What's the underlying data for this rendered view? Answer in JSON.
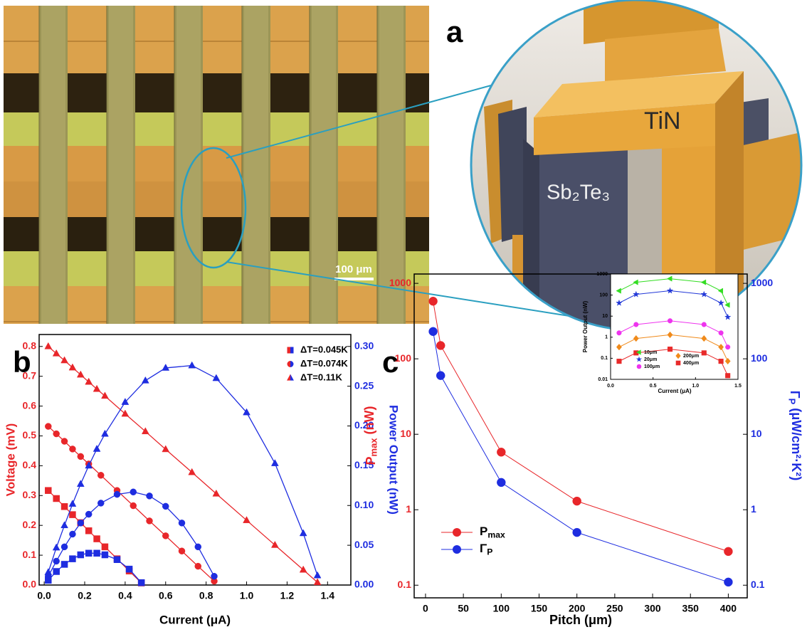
{
  "panel_labels": [
    "a",
    "b",
    "c"
  ],
  "micrograph": {
    "scale_bar": "100 μm"
  },
  "render": {
    "top_material": "TiN",
    "leg_material": "Sb₂Te₃"
  },
  "chart_data": [
    {
      "type": "line",
      "xlabel": "Current (μA)",
      "ylabel": "Voltage (mV)",
      "y2label": "Power Output (nW)",
      "ycolor": "#e8262a",
      "y2color": "#1e2de0",
      "xlim": [
        -0.025,
        1.515
      ],
      "ylim": [
        0,
        0.84
      ],
      "y2lim": [
        0,
        0.315
      ],
      "xticks": [
        {
          "value": 0,
          "label": "0.0"
        },
        0.2,
        0.4,
        0.6,
        0.8,
        {
          "value": 1,
          "label": "1.0"
        },
        1.2,
        1.4
      ],
      "yticks": [
        {
          "value": 0,
          "label": "0.0"
        },
        0.1,
        0.2,
        0.3,
        0.4,
        0.5,
        0.6,
        0.7,
        0.8
      ],
      "y2ticks": [
        {
          "value": 0,
          "label": "0.00"
        },
        0.05,
        {
          "value": 0.1,
          "label": "0.10"
        },
        0.15,
        {
          "value": 0.2,
          "label": "0.20"
        },
        0.25,
        {
          "value": 0.3,
          "label": "0.30"
        }
      ],
      "legend": "upper right",
      "series": [
        {
          "name": "ΔT=0.045K",
          "marker": "square",
          "x": [
            0.02,
            0.06,
            0.1,
            0.14,
            0.18,
            0.22,
            0.26,
            0.3,
            0.36,
            0.42,
            0.48
          ],
          "values": [
            0.317,
            0.29,
            0.263,
            0.236,
            0.209,
            0.182,
            0.155,
            0.128,
            0.088,
            0.047,
            0.007
          ],
          "y2values": [
            0.006,
            0.017,
            0.026,
            0.033,
            0.038,
            0.04,
            0.04,
            0.038,
            0.032,
            0.02,
            0.003
          ]
        },
        {
          "name": "ΔT=0.074K",
          "marker": "circle",
          "x": [
            0.02,
            0.06,
            0.1,
            0.14,
            0.18,
            0.22,
            0.28,
            0.36,
            0.44,
            0.52,
            0.6,
            0.68,
            0.76,
            0.84
          ],
          "values": [
            0.532,
            0.507,
            0.482,
            0.456,
            0.431,
            0.406,
            0.368,
            0.317,
            0.266,
            0.215,
            0.165,
            0.114,
            0.063,
            0.013
          ],
          "y2values": [
            0.011,
            0.03,
            0.048,
            0.064,
            0.078,
            0.089,
            0.103,
            0.114,
            0.117,
            0.112,
            0.099,
            0.078,
            0.048,
            0.011
          ]
        },
        {
          "name": "ΔT=0.11K",
          "marker": "triangle",
          "x": [
            0.02,
            0.06,
            0.1,
            0.14,
            0.18,
            0.22,
            0.26,
            0.3,
            0.4,
            0.5,
            0.6,
            0.73,
            0.85,
            1.0,
            1.14,
            1.28,
            1.35
          ],
          "values": [
            0.8,
            0.776,
            0.753,
            0.729,
            0.705,
            0.681,
            0.657,
            0.634,
            0.574,
            0.515,
            0.455,
            0.378,
            0.306,
            0.217,
            0.134,
            0.051,
            0.009
          ],
          "y2values": [
            0.016,
            0.047,
            0.075,
            0.102,
            0.127,
            0.15,
            0.171,
            0.19,
            0.23,
            0.257,
            0.273,
            0.276,
            0.26,
            0.217,
            0.153,
            0.065,
            0.012
          ]
        }
      ]
    },
    {
      "type": "line",
      "xlabel": "Pitch (μm)",
      "ylabel": [
        {
          "text": "P"
        },
        {
          "sub": "max"
        },
        {
          "text": " (nW)"
        }
      ],
      "y2label": [
        {
          "text": "Γ"
        },
        {
          "sub": "P"
        },
        {
          "text": " (μW/cm²·K²)"
        }
      ],
      "ycolor": "#e8262a",
      "y2color": "#1e2de0",
      "log_y": true,
      "log_y2": true,
      "x": [
        10,
        20,
        100,
        200,
        400
      ],
      "xlim": [
        -15,
        425
      ],
      "ylim": [
        0.068,
        1330
      ],
      "y2lim": [
        0.068,
        1330
      ],
      "xticks": [
        0,
        50,
        100,
        150,
        200,
        250,
        300,
        350,
        400
      ],
      "yticks": [
        0.1,
        1,
        10,
        100,
        1000
      ],
      "y2ticks": [
        0.1,
        1,
        10,
        100,
        1000
      ],
      "legend": "lower left",
      "series": [
        {
          "name": [
            {
              "text": "P"
            },
            {
              "sub": "max"
            }
          ],
          "color": "#e8262a",
          "marker": "circle",
          "values": [
            580,
            150,
            5.8,
            1.3,
            0.28
          ]
        },
        {
          "name": [
            {
              "text": "Γ"
            },
            {
              "sub": "P"
            }
          ],
          "color": "#1e2de0",
          "marker": "circle",
          "axis": "y2",
          "values": [
            230,
            60,
            2.3,
            0.5,
            0.11
          ]
        }
      ]
    },
    {
      "type": "line",
      "inset": true,
      "xlabel": "Current (μA)",
      "ylabel": "Power Output (nW)",
      "log_y": true,
      "x": [
        0.1,
        0.3,
        0.7,
        1.1,
        1.3,
        1.38
      ],
      "xlim": [
        0,
        1.5
      ],
      "ylim": [
        0.01,
        1000
      ],
      "xticks": [
        {
          "value": 0,
          "label": "0.0"
        },
        0.5,
        {
          "value": 1,
          "label": "1.0"
        },
        1.5
      ],
      "yticks": [
        0.01,
        0.1,
        1,
        10,
        100,
        1000
      ],
      "legend": "lower center",
      "series": [
        {
          "name": "10μm",
          "color": "#33dd22",
          "marker": "triangle-left",
          "values": [
            159,
            404,
            600,
            404,
            159,
            34
          ]
        },
        {
          "name": "20μm",
          "color": "#2238d8",
          "marker": "star",
          "values": [
            42,
            108,
            160,
            108,
            42,
            9
          ]
        },
        {
          "name": "100μm",
          "color": "#ee33ee",
          "marker": "circle",
          "values": [
            1.6,
            4.0,
            6,
            4.0,
            1.6,
            0.34
          ]
        },
        {
          "name": "200μm",
          "color": "#f08a1a",
          "marker": "diamond",
          "values": [
            0.34,
            0.87,
            1.3,
            0.87,
            0.34,
            0.073
          ]
        },
        {
          "name": "400μm",
          "color": "#e82a2a",
          "marker": "square",
          "values": [
            0.072,
            0.18,
            0.27,
            0.18,
            0.072,
            0.015
          ]
        }
      ]
    }
  ]
}
